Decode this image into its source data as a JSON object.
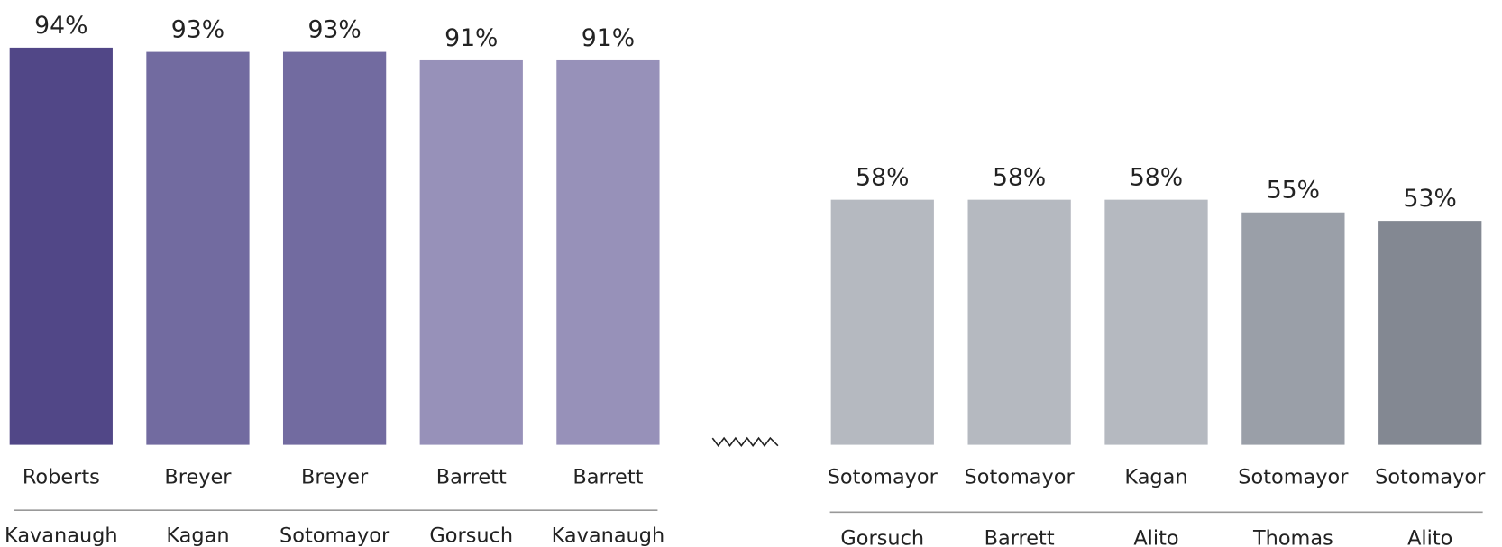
{
  "chart_data": [
    {
      "type": "bar",
      "categories": [
        [
          "Roberts",
          "Kavanaugh"
        ],
        [
          "Breyer",
          "Kagan"
        ],
        [
          "Breyer",
          "Sotomayor"
        ],
        [
          "Barrett",
          "Gorsuch"
        ],
        [
          "Barrett",
          "Kavanaugh"
        ]
      ],
      "values": [
        94,
        93,
        93,
        91,
        91
      ],
      "value_labels": [
        "94%",
        "93%",
        "93%",
        "91%",
        "91%"
      ],
      "colors": [
        "#514787",
        "#726ba0",
        "#726ba0",
        "#9791b9",
        "#9791b9"
      ],
      "ylim": [
        0,
        100
      ]
    },
    {
      "type": "bar",
      "categories": [
        [
          "Sotomayor",
          "Gorsuch"
        ],
        [
          "Sotomayor",
          "Barrett"
        ],
        [
          "Kagan",
          "Alito"
        ],
        [
          "Sotomayor",
          "Thomas"
        ],
        [
          "Sotomayor",
          "Alito"
        ]
      ],
      "values": [
        58,
        58,
        58,
        55,
        53
      ],
      "value_labels": [
        "58%",
        "58%",
        "58%",
        "55%",
        "53%"
      ],
      "colors": [
        "#b5b9c0",
        "#b5b9c0",
        "#b5b9c0",
        "#9a9fa8",
        "#838892"
      ],
      "ylim": [
        0,
        100
      ]
    }
  ]
}
